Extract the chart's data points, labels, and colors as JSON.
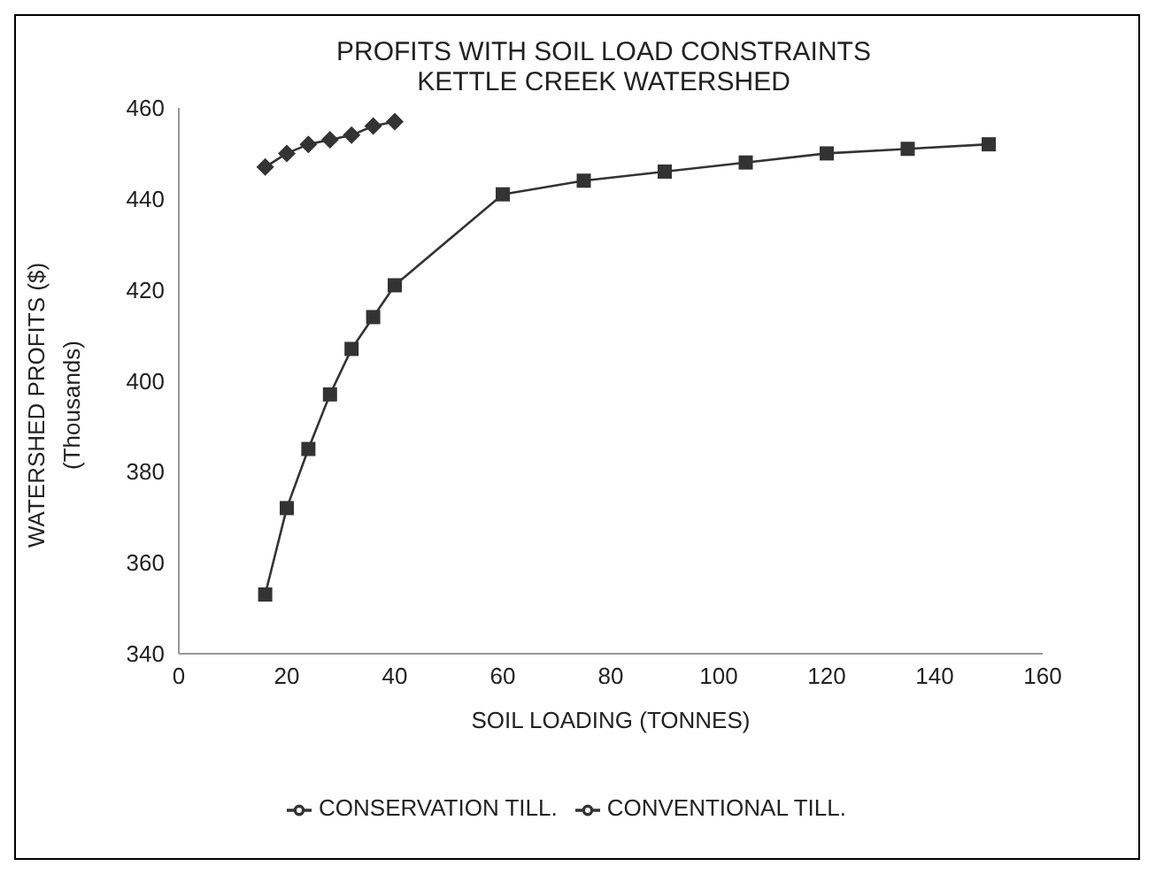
{
  "chart_data": {
    "type": "line",
    "title": "PROFITS WITH SOIL LOAD CONSTRAINTS",
    "subtitle": "KETTLE CREEK WATERSHED",
    "xlabel": "SOIL LOADING (TONNES)",
    "ylabel": "WATERSHED PROFITS ($)\n(Thousands)",
    "series": [
      {
        "name": "CONVENTIONAL TILL.",
        "color": "#333333",
        "marker": "square",
        "x": [
          16,
          20,
          24,
          28,
          32,
          36,
          40,
          60,
          75,
          90,
          105,
          120,
          135,
          150
        ],
        "values": [
          353,
          372,
          385,
          397,
          407,
          414,
          421,
          441,
          444,
          446,
          448,
          450,
          451,
          452
        ]
      },
      {
        "name": "CONSERVATION TILL.",
        "color": "#333333",
        "marker": "diamond",
        "x": [
          16,
          20,
          24,
          28,
          32,
          36,
          40
        ],
        "values": [
          447,
          450,
          452,
          453,
          454,
          456,
          457
        ]
      }
    ],
    "xlim": [
      0,
      160
    ],
    "xticks": [
      0,
      20,
      40,
      60,
      80,
      100,
      120,
      140,
      160
    ],
    "ylim": [
      340,
      460
    ],
    "yticks": [
      340,
      360,
      380,
      400,
      420,
      440,
      460
    ],
    "grid": false,
    "legend": "bottom",
    "line_style": "solid"
  }
}
